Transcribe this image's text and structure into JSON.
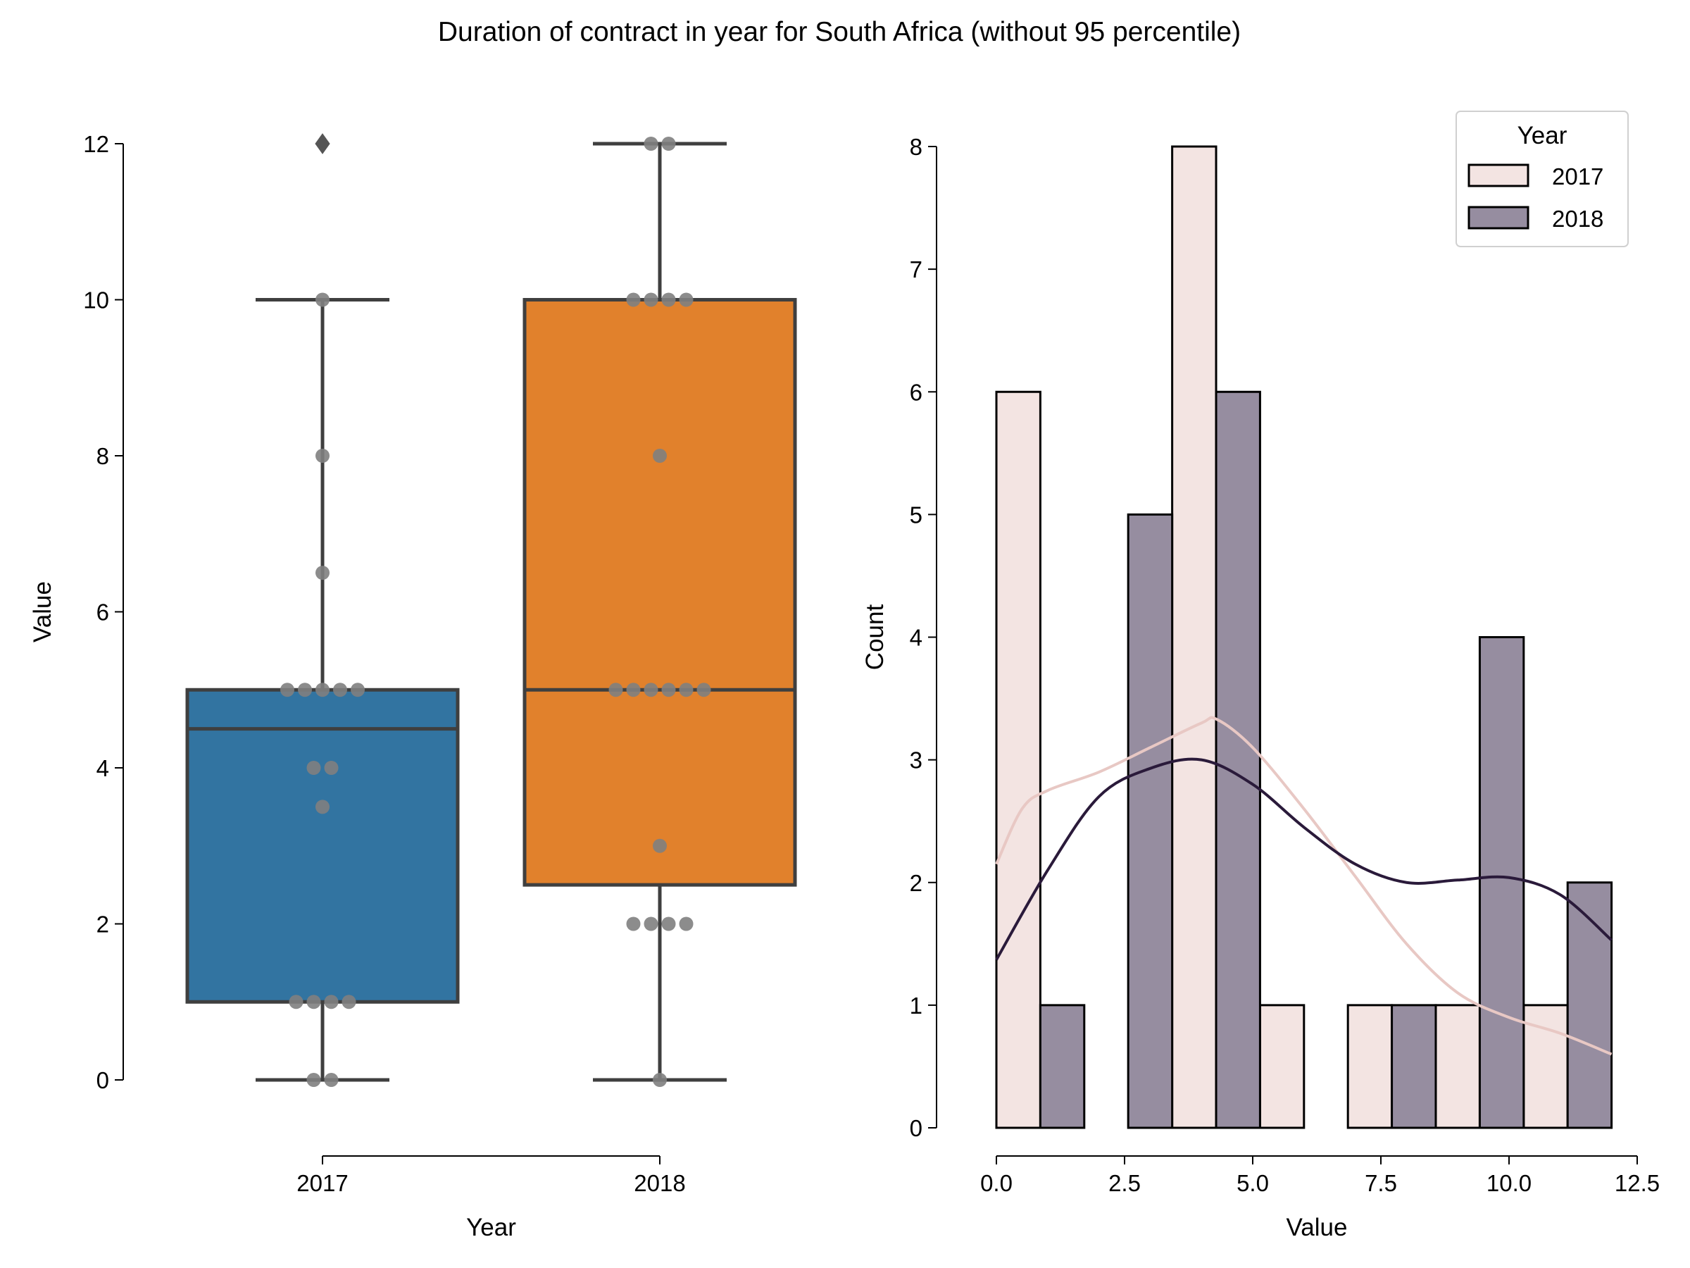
{
  "figure": {
    "title": "Duration of contract in year for South Africa (without 95 percentile)"
  },
  "colors": {
    "box_2017": "#3274a1",
    "box_2018": "#e1812c",
    "box_edge": "#3f3f3f",
    "swarm_point": "#808080",
    "hist_2017": "#f3e4e2",
    "hist_2018": "#968da0",
    "kde_2017": "#e8c8c4",
    "kde_2018": "#2a1a3a"
  },
  "chart_data": [
    {
      "type": "box",
      "xlabel": "Year",
      "ylabel": "Value",
      "ylim": [
        0,
        12
      ],
      "yticks": [
        "0",
        "2",
        "4",
        "6",
        "8",
        "10",
        "12"
      ],
      "categories": [
        "2017",
        "2018"
      ],
      "boxes": [
        {
          "category": "2017",
          "q1": 1,
          "median": 4.5,
          "q3": 5,
          "whisker_low": 0,
          "whisker_high": 10,
          "outliers": [
            12
          ]
        },
        {
          "category": "2018",
          "q1": 2.5,
          "median": 5,
          "q3": 10,
          "whisker_low": 0,
          "whisker_high": 12,
          "outliers": []
        }
      ],
      "swarm_points": [
        {
          "category": "2017",
          "values": [
            0,
            0,
            1,
            1,
            1,
            1,
            3.5,
            4,
            4,
            5,
            5,
            5,
            5,
            5,
            6.5,
            8,
            10
          ]
        },
        {
          "category": "2018",
          "values": [
            0,
            2,
            2,
            2,
            2,
            3,
            5,
            5,
            5,
            5,
            5,
            5,
            8,
            10,
            10,
            10,
            10,
            12,
            12
          ]
        }
      ]
    },
    {
      "type": "histogram",
      "xlabel": "Value",
      "ylabel": "Count",
      "xlim": [
        0,
        12.5
      ],
      "ylim": [
        0,
        8
      ],
      "xticks": [
        "0.0",
        "2.5",
        "5.0",
        "7.5",
        "10.0",
        "12.5"
      ],
      "yticks": [
        "0",
        "1",
        "2",
        "3",
        "4",
        "5",
        "6",
        "7",
        "8"
      ],
      "legend_title": "Year",
      "legend_position": "top-right",
      "series": [
        {
          "name": "2017",
          "bars": [
            {
              "x0": 0.0,
              "x1": 0.857,
              "count": 6
            },
            {
              "x0": 3.429,
              "x1": 4.286,
              "count": 8
            },
            {
              "x0": 5.143,
              "x1": 6.0,
              "count": 1
            },
            {
              "x0": 6.857,
              "x1": 7.714,
              "count": 1
            },
            {
              "x0": 8.571,
              "x1": 9.429,
              "count": 1
            },
            {
              "x0": 10.286,
              "x1": 11.143,
              "count": 1
            }
          ],
          "kde": [
            [
              0,
              2.15
            ],
            [
              0.5,
              2.6
            ],
            [
              1,
              2.75
            ],
            [
              2,
              2.9
            ],
            [
              3,
              3.1
            ],
            [
              4,
              3.3
            ],
            [
              4.3,
              3.33
            ],
            [
              5,
              3.1
            ],
            [
              6,
              2.6
            ],
            [
              7,
              2.05
            ],
            [
              8,
              1.5
            ],
            [
              9,
              1.1
            ],
            [
              10,
              0.9
            ],
            [
              11,
              0.77
            ],
            [
              12,
              0.6
            ]
          ]
        },
        {
          "name": "2018",
          "bars": [
            {
              "x0": 0.857,
              "x1": 1.714,
              "count": 1
            },
            {
              "x0": 2.571,
              "x1": 3.429,
              "count": 5
            },
            {
              "x0": 4.286,
              "x1": 5.143,
              "count": 6
            },
            {
              "x0": 7.714,
              "x1": 8.571,
              "count": 1
            },
            {
              "x0": 9.429,
              "x1": 10.286,
              "count": 4
            },
            {
              "x0": 11.143,
              "x1": 12.0,
              "count": 2
            }
          ],
          "kde": [
            [
              0,
              1.37
            ],
            [
              1,
              2.1
            ],
            [
              2,
              2.7
            ],
            [
              3,
              2.93
            ],
            [
              4,
              3.0
            ],
            [
              5,
              2.8
            ],
            [
              6,
              2.45
            ],
            [
              7,
              2.15
            ],
            [
              8,
              2.0
            ],
            [
              9,
              2.02
            ],
            [
              10,
              2.04
            ],
            [
              11,
              1.9
            ],
            [
              12,
              1.53
            ]
          ]
        }
      ]
    }
  ]
}
